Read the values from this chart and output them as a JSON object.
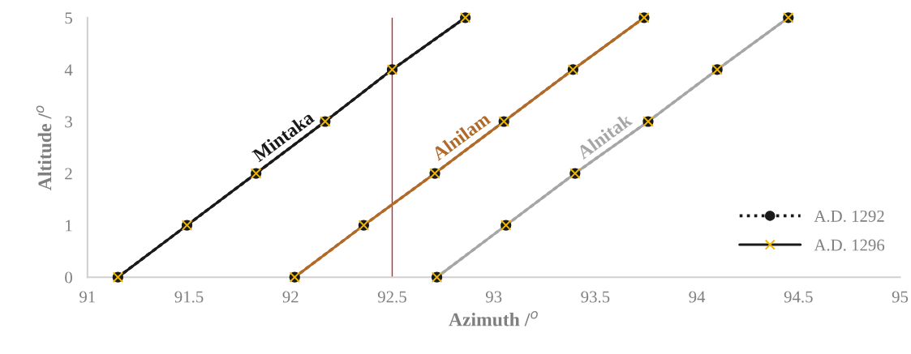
{
  "chart_data": {
    "type": "line",
    "xlabel": "Azimuth /$^{o}$",
    "ylabel": "Altitude /$^{o}$",
    "xlim": [
      91,
      95
    ],
    "xticks": [
      91,
      91.5,
      92,
      92.5,
      93,
      93.5,
      94,
      94.5,
      95
    ],
    "ylim": [
      0,
      5
    ],
    "yticks": [
      0,
      1,
      2,
      3,
      4,
      5
    ],
    "grid": false,
    "legend": "bottom right",
    "series": [
      {
        "name": "A.D. 1292",
        "color": "#1a1a1a",
        "colors": [
          "#1a1a1a",
          "#1a1a1a",
          "#1a1a1a",
          "#1a1a1a",
          "#1a1a1a",
          "#1a1a1a"
        ],
        "marker": "circle",
        "line_style": "dotted",
        "x": [
          91.15,
          91.49,
          91.83,
          92.17,
          92.5,
          92.86
        ],
        "values": [
          0,
          1,
          2,
          3,
          4,
          5
        ]
      },
      {
        "name": "A.D. 1296",
        "color": "#1a1a1a",
        "colors": [
          "#f2b800",
          "#f2b800",
          "#f2b800",
          "#f2b800",
          "#f2b800",
          "#f2b800"
        ],
        "marker": "cross",
        "line_style": "solid",
        "x": [
          91.15,
          91.49,
          91.83,
          92.17,
          92.5,
          92.86
        ],
        "values": [
          0,
          1,
          2,
          3,
          4,
          5
        ]
      },
      {
        "color": "#b06a2a",
        "colors": [
          "#1a1a1a",
          "#1a1a1a",
          "#1a1a1a",
          "#1a1a1a",
          "#1a1a1a",
          "#1a1a1a"
        ],
        "marker": "circle",
        "line_style": "dotted",
        "x": [
          92.02,
          92.36,
          92.71,
          93.05,
          93.39,
          93.74
        ],
        "values": [
          0,
          1,
          2,
          3,
          4,
          5
        ]
      },
      {
        "color": "#b06a2a",
        "colors": [
          "#f2b800",
          "#f2b800",
          "#f2b800",
          "#f2b800",
          "#f2b800",
          "#f2b800"
        ],
        "marker": "cross",
        "line_style": "solid",
        "x": [
          92.02,
          92.36,
          92.71,
          93.05,
          93.39,
          93.74
        ],
        "values": [
          0,
          1,
          2,
          3,
          4,
          5
        ]
      },
      {
        "color": "#a6a6a6",
        "colors": [
          "#1a1a1a",
          "#1a1a1a",
          "#1a1a1a",
          "#1a1a1a",
          "#1a1a1a",
          "#1a1a1a"
        ],
        "marker": "circle",
        "line_style": "dotted",
        "x": [
          92.72,
          93.06,
          93.4,
          93.76,
          94.1,
          94.45
        ],
        "values": [
          0,
          1,
          2,
          3,
          4,
          5
        ]
      },
      {
        "color": "#a6a6a6",
        "colors": [
          "#f2b800",
          "#f2b800",
          "#f2b800",
          "#f2b800",
          "#f2b800",
          "#f2b800"
        ],
        "marker": "cross",
        "line_style": "solid",
        "x": [
          92.72,
          93.06,
          93.4,
          93.76,
          94.1,
          94.45
        ],
        "values": [
          0,
          1,
          2,
          3,
          4,
          5
        ]
      }
    ],
    "ref_lines": [
      {
        "axis": "x",
        "value": 92.5,
        "color": "#c0262d"
      }
    ],
    "annotations": [
      "Mintaka",
      "Alnilam",
      "Alnitak"
    ]
  }
}
